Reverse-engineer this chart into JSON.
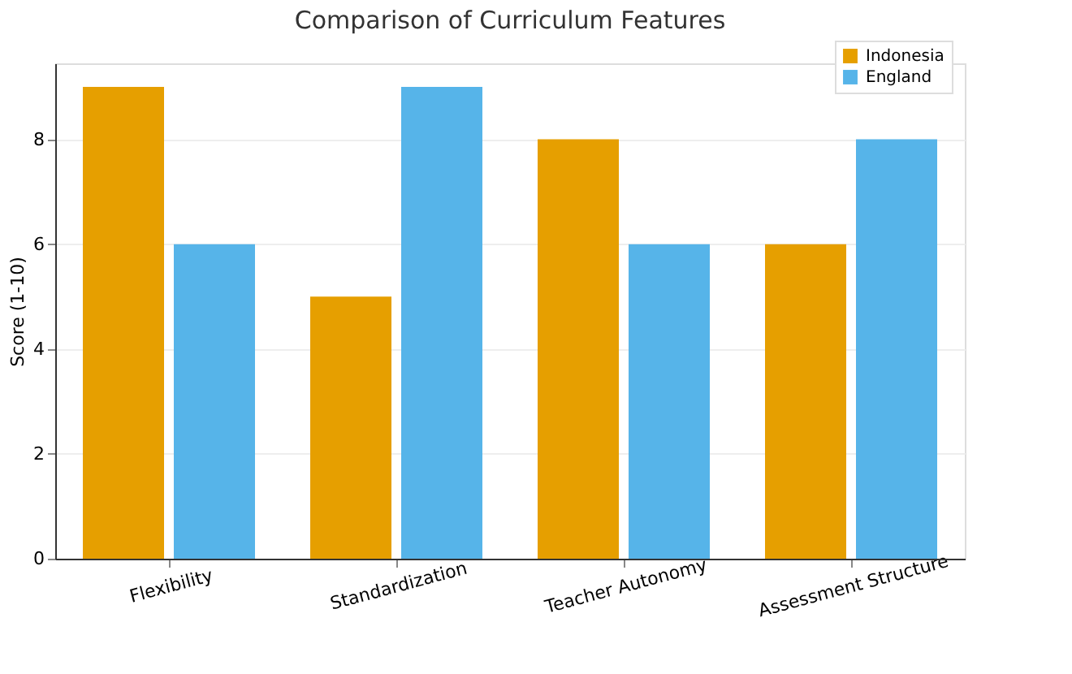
{
  "chart_data": {
    "type": "bar",
    "title": "Comparison of Curriculum Features",
    "ylabel": "Score (1-10)",
    "categories": [
      "Flexibility",
      "Standardization",
      "Teacher Autonomy",
      "Assessment Structure"
    ],
    "series": [
      {
        "name": "Indonesia",
        "color": "#e69f00",
        "values": [
          9,
          5,
          8,
          6
        ]
      },
      {
        "name": "England",
        "color": "#56b4e9",
        "values": [
          6,
          9,
          6,
          8
        ]
      }
    ],
    "ylim": [
      0,
      9.45
    ],
    "yticks": [
      0,
      2,
      4,
      6,
      8
    ],
    "grid": "y",
    "legend": "top right"
  }
}
